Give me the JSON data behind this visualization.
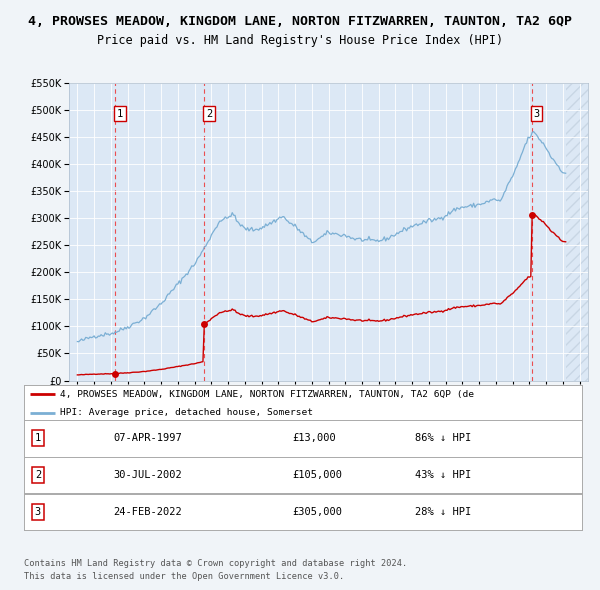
{
  "title": "4, PROWSES MEADOW, KINGDOM LANE, NORTON FITZWARREN, TAUNTON, TA2 6QP",
  "subtitle": "Price paid vs. HM Land Registry's House Price Index (HPI)",
  "title_fontsize": 9.5,
  "subtitle_fontsize": 8.5,
  "background_color": "#f0f4f8",
  "plot_bg_color": "#dce8f5",
  "ylim": [
    0,
    550000
  ],
  "yticks": [
    0,
    50000,
    100000,
    150000,
    200000,
    250000,
    300000,
    350000,
    400000,
    450000,
    500000,
    550000
  ],
  "sales": [
    {
      "date_num": 1997.27,
      "price": 13000,
      "label": "1"
    },
    {
      "date_num": 2002.58,
      "price": 105000,
      "label": "2"
    },
    {
      "date_num": 2022.14,
      "price": 305000,
      "label": "3"
    }
  ],
  "sale_color": "#cc0000",
  "vline_color": "#ee3333",
  "hpi_color": "#7bafd4",
  "legend_label_red": "4, PROWSES MEADOW, KINGDOM LANE, NORTON FITZWARREN, TAUNTON, TA2 6QP (de",
  "legend_label_blue": "HPI: Average price, detached house, Somerset",
  "table_rows": [
    [
      "1",
      "07-APR-1997",
      "£13,000",
      "86% ↓ HPI"
    ],
    [
      "2",
      "30-JUL-2002",
      "£105,000",
      "43% ↓ HPI"
    ],
    [
      "3",
      "24-FEB-2022",
      "£305,000",
      "28% ↓ HPI"
    ]
  ],
  "footnote1": "Contains HM Land Registry data © Crown copyright and database right 2024.",
  "footnote2": "This data is licensed under the Open Government Licence v3.0.",
  "xticks": [
    1995,
    1996,
    1997,
    1998,
    1999,
    2000,
    2001,
    2002,
    2003,
    2004,
    2005,
    2006,
    2007,
    2008,
    2009,
    2010,
    2011,
    2012,
    2013,
    2014,
    2015,
    2016,
    2017,
    2018,
    2019,
    2020,
    2021,
    2022,
    2023,
    2024,
    2025
  ],
  "xlim": [
    1994.5,
    2025.5
  ]
}
